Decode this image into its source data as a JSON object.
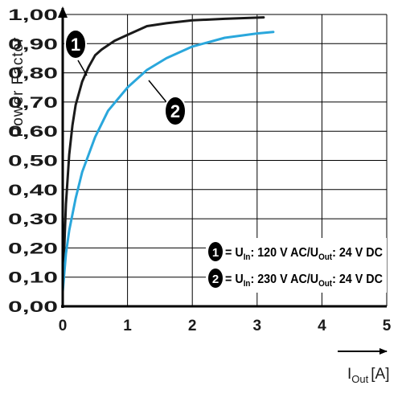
{
  "chart_data": {
    "type": "line",
    "ylabel": "Power Factor",
    "xlabel_main": "I",
    "xlabel_sub": "Out",
    "xlabel_unit": "[A]",
    "xlim": [
      0,
      5
    ],
    "ylim": [
      0,
      1
    ],
    "x_ticks": [
      {
        "value": 0,
        "label": "0"
      },
      {
        "value": 1,
        "label": "1"
      },
      {
        "value": 2,
        "label": "2"
      },
      {
        "value": 3,
        "label": "3"
      },
      {
        "value": 4,
        "label": "4"
      },
      {
        "value": 5,
        "label": "5"
      }
    ],
    "y_ticks": [
      {
        "value": 0.0,
        "label": "0,00"
      },
      {
        "value": 0.1,
        "label": "0,10"
      },
      {
        "value": 0.2,
        "label": "0,20"
      },
      {
        "value": 0.3,
        "label": "0,30"
      },
      {
        "value": 0.4,
        "label": "0,40"
      },
      {
        "value": 0.5,
        "label": "0,50"
      },
      {
        "value": 0.6,
        "label": "0,60"
      },
      {
        "value": 0.7,
        "label": "0,70"
      },
      {
        "value": 0.8,
        "label": "0,80"
      },
      {
        "value": 0.9,
        "label": "0,90"
      },
      {
        "value": 1.0,
        "label": "1,00"
      }
    ],
    "grid": true,
    "series": [
      {
        "marker": "1",
        "color": "#1a1a1a",
        "points": [
          [
            0.0,
            0.06
          ],
          [
            0.05,
            0.35
          ],
          [
            0.1,
            0.52
          ],
          [
            0.15,
            0.62
          ],
          [
            0.2,
            0.69
          ],
          [
            0.3,
            0.77
          ],
          [
            0.4,
            0.82
          ],
          [
            0.5,
            0.86
          ],
          [
            0.6,
            0.88
          ],
          [
            0.8,
            0.91
          ],
          [
            1.0,
            0.93
          ],
          [
            1.3,
            0.96
          ],
          [
            1.6,
            0.97
          ],
          [
            2.0,
            0.98
          ],
          [
            2.5,
            0.985
          ],
          [
            3.1,
            0.99
          ]
        ]
      },
      {
        "marker": "2",
        "color": "#2aa7dc",
        "points": [
          [
            0.0,
            0.05
          ],
          [
            0.05,
            0.18
          ],
          [
            0.1,
            0.26
          ],
          [
            0.2,
            0.37
          ],
          [
            0.3,
            0.46
          ],
          [
            0.5,
            0.58
          ],
          [
            0.7,
            0.67
          ],
          [
            1.0,
            0.75
          ],
          [
            1.3,
            0.81
          ],
          [
            1.6,
            0.85
          ],
          [
            2.0,
            0.89
          ],
          [
            2.5,
            0.92
          ],
          [
            3.0,
            0.935
          ],
          [
            3.25,
            0.94
          ]
        ]
      }
    ],
    "legend_placement": "bottom-right",
    "legend": [
      {
        "marker": "1",
        "parts": [
          "= U",
          "In",
          ": 120 V AC/U",
          "Out",
          ": 24 V DC"
        ]
      },
      {
        "marker": "2",
        "parts": [
          "= U",
          "In",
          ": 230 V AC/U",
          "Out",
          ": 24 V DC"
        ]
      }
    ]
  }
}
